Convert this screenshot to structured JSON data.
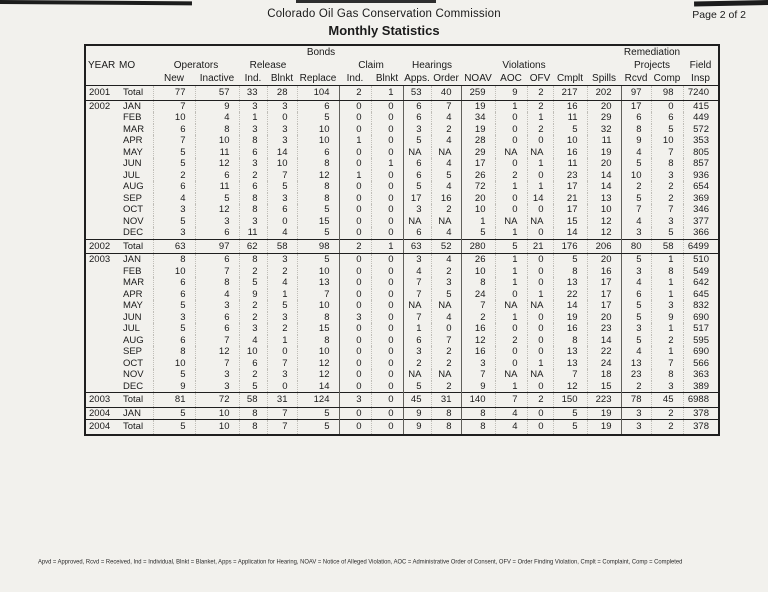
{
  "page": {
    "title_line1": "Colorado Oil Gas Conservation Commission",
    "title_line2": "Monthly Statistics",
    "page_number": "Page 2 of 2",
    "footnote": "Apvd = Approved, Rcvd = Received, Ind = Individual, Blnkt = Blanket, Apps = Application for Hearing, NOAV = Notice of Alleged Violation, AOC = Administrative Order of Consent, OFV = Order Finding Violation, Cmplt = Complaint, Comp = Completed"
  },
  "table": {
    "bonds_label": "Bonds",
    "remediation_label": "Remediation",
    "year_label": "YEAR",
    "mo_label": "MO",
    "groups": {
      "operators": "Operators",
      "release": "Release",
      "claim": "Claim",
      "hearings": "Hearings",
      "violations": "Violations",
      "projects": "Projects",
      "field": "Field"
    },
    "cols": [
      "New",
      "Inactive",
      "Ind.",
      "Blnkt",
      "Replace",
      "Ind.",
      "Blnkt",
      "Apps.",
      "Order",
      "NOAV",
      "AOC",
      "OFV",
      "Cmplt",
      "Spills",
      "Rcvd",
      "Comp",
      "Insp"
    ],
    "rows": [
      {
        "year": "2001",
        "mo": "Total",
        "values": [
          "77",
          "57",
          "33",
          "28",
          "104",
          "2",
          "1",
          "53",
          "40",
          "259",
          "9",
          "2",
          "217",
          "202",
          "97",
          "98",
          "7240"
        ]
      },
      {
        "year": "2002",
        "mo": "JAN",
        "values": [
          "7",
          "9",
          "3",
          "3",
          "6",
          "0",
          "0",
          "6",
          "7",
          "19",
          "1",
          "2",
          "16",
          "20",
          "17",
          "0",
          "415"
        ]
      },
      {
        "year": "",
        "mo": "FEB",
        "values": [
          "10",
          "4",
          "1",
          "0",
          "5",
          "0",
          "0",
          "6",
          "4",
          "34",
          "0",
          "1",
          "11",
          "29",
          "6",
          "6",
          "449"
        ]
      },
      {
        "year": "",
        "mo": "MAR",
        "values": [
          "6",
          "8",
          "3",
          "3",
          "10",
          "0",
          "0",
          "3",
          "2",
          "19",
          "0",
          "2",
          "5",
          "32",
          "8",
          "5",
          "572"
        ]
      },
      {
        "year": "",
        "mo": "APR",
        "values": [
          "7",
          "10",
          "8",
          "3",
          "10",
          "1",
          "0",
          "5",
          "4",
          "28",
          "0",
          "0",
          "10",
          "11",
          "9",
          "10",
          "353"
        ]
      },
      {
        "year": "",
        "mo": "MAY",
        "values": [
          "5",
          "11",
          "6",
          "14",
          "6",
          "0",
          "0",
          "NA",
          "NA",
          "29",
          "NA",
          "NA",
          "16",
          "19",
          "4",
          "7",
          "805"
        ]
      },
      {
        "year": "",
        "mo": "JUN",
        "values": [
          "5",
          "12",
          "3",
          "10",
          "8",
          "0",
          "1",
          "6",
          "4",
          "17",
          "0",
          "1",
          "11",
          "20",
          "5",
          "8",
          "857"
        ]
      },
      {
        "year": "",
        "mo": "JUL",
        "values": [
          "2",
          "6",
          "2",
          "7",
          "12",
          "1",
          "0",
          "6",
          "5",
          "26",
          "2",
          "0",
          "23",
          "14",
          "10",
          "3",
          "936"
        ]
      },
      {
        "year": "",
        "mo": "AUG",
        "values": [
          "6",
          "11",
          "6",
          "5",
          "8",
          "0",
          "0",
          "5",
          "4",
          "72",
          "1",
          "1",
          "17",
          "14",
          "2",
          "2",
          "654"
        ]
      },
      {
        "year": "",
        "mo": "SEP",
        "values": [
          "4",
          "5",
          "8",
          "3",
          "8",
          "0",
          "0",
          "17",
          "16",
          "20",
          "0",
          "14",
          "21",
          "13",
          "5",
          "2",
          "369"
        ]
      },
      {
        "year": "",
        "mo": "OCT",
        "values": [
          "3",
          "12",
          "8",
          "6",
          "5",
          "0",
          "0",
          "3",
          "2",
          "10",
          "0",
          "0",
          "17",
          "10",
          "7",
          "7",
          "346"
        ]
      },
      {
        "year": "",
        "mo": "NOV",
        "values": [
          "5",
          "3",
          "3",
          "0",
          "15",
          "0",
          "0",
          "NA",
          "NA",
          "1",
          "NA",
          "NA",
          "15",
          "12",
          "4",
          "3",
          "377"
        ]
      },
      {
        "year": "",
        "mo": "DEC",
        "values": [
          "3",
          "6",
          "11",
          "4",
          "5",
          "0",
          "0",
          "6",
          "4",
          "5",
          "1",
          "0",
          "14",
          "12",
          "3",
          "5",
          "366"
        ]
      },
      {
        "year": "2002",
        "mo": "Total",
        "values": [
          "63",
          "97",
          "62",
          "58",
          "98",
          "2",
          "1",
          "63",
          "52",
          "280",
          "5",
          "21",
          "176",
          "206",
          "80",
          "58",
          "6499"
        ]
      },
      {
        "year": "2003",
        "mo": "JAN",
        "values": [
          "8",
          "6",
          "8",
          "3",
          "5",
          "0",
          "0",
          "3",
          "4",
          "26",
          "1",
          "0",
          "5",
          "20",
          "5",
          "1",
          "510"
        ]
      },
      {
        "year": "",
        "mo": "FEB",
        "values": [
          "10",
          "7",
          "2",
          "2",
          "10",
          "0",
          "0",
          "4",
          "2",
          "10",
          "1",
          "0",
          "8",
          "16",
          "3",
          "8",
          "549"
        ]
      },
      {
        "year": "",
        "mo": "MAR",
        "values": [
          "6",
          "8",
          "5",
          "4",
          "13",
          "0",
          "0",
          "7",
          "3",
          "8",
          "1",
          "0",
          "13",
          "17",
          "4",
          "1",
          "642"
        ]
      },
      {
        "year": "",
        "mo": "APR",
        "values": [
          "6",
          "4",
          "9",
          "1",
          "7",
          "0",
          "0",
          "7",
          "5",
          "24",
          "0",
          "1",
          "22",
          "17",
          "6",
          "1",
          "645"
        ]
      },
      {
        "year": "",
        "mo": "MAY",
        "values": [
          "5",
          "3",
          "2",
          "5",
          "10",
          "0",
          "0",
          "NA",
          "NA",
          "7",
          "NA",
          "NA",
          "14",
          "17",
          "5",
          "3",
          "832"
        ]
      },
      {
        "year": "",
        "mo": "JUN",
        "values": [
          "3",
          "6",
          "2",
          "3",
          "8",
          "3",
          "0",
          "7",
          "4",
          "2",
          "1",
          "0",
          "19",
          "20",
          "5",
          "9",
          "690"
        ]
      },
      {
        "year": "",
        "mo": "JUL",
        "values": [
          "5",
          "6",
          "3",
          "2",
          "15",
          "0",
          "0",
          "1",
          "0",
          "16",
          "0",
          "0",
          "16",
          "23",
          "3",
          "1",
          "517"
        ]
      },
      {
        "year": "",
        "mo": "AUG",
        "values": [
          "6",
          "7",
          "4",
          "1",
          "8",
          "0",
          "0",
          "6",
          "7",
          "12",
          "2",
          "0",
          "8",
          "14",
          "5",
          "2",
          "595"
        ]
      },
      {
        "year": "",
        "mo": "SEP",
        "values": [
          "8",
          "12",
          "10",
          "0",
          "10",
          "0",
          "0",
          "3",
          "2",
          "16",
          "0",
          "0",
          "13",
          "22",
          "4",
          "1",
          "690"
        ]
      },
      {
        "year": "",
        "mo": "OCT",
        "values": [
          "10",
          "7",
          "6",
          "7",
          "12",
          "0",
          "0",
          "2",
          "2",
          "3",
          "0",
          "1",
          "13",
          "24",
          "13",
          "7",
          "566"
        ]
      },
      {
        "year": "",
        "mo": "NOV",
        "values": [
          "5",
          "3",
          "2",
          "3",
          "12",
          "0",
          "0",
          "NA",
          "NA",
          "7",
          "NA",
          "NA",
          "7",
          "18",
          "23",
          "8",
          "363"
        ]
      },
      {
        "year": "",
        "mo": "DEC",
        "values": [
          "9",
          "3",
          "5",
          "0",
          "14",
          "0",
          "0",
          "5",
          "2",
          "9",
          "1",
          "0",
          "12",
          "15",
          "2",
          "3",
          "389"
        ]
      },
      {
        "year": "2003",
        "mo": "Total",
        "values": [
          "81",
          "72",
          "58",
          "31",
          "124",
          "3",
          "0",
          "45",
          "31",
          "140",
          "7",
          "2",
          "150",
          "223",
          "78",
          "45",
          "6988"
        ]
      },
      {
        "year": "2004",
        "mo": "JAN",
        "values": [
          "5",
          "10",
          "8",
          "7",
          "5",
          "0",
          "0",
          "9",
          "8",
          "8",
          "4",
          "0",
          "5",
          "19",
          "3",
          "2",
          "378"
        ]
      },
      {
        "year": "2004",
        "mo": "Total",
        "values": [
          "5",
          "10",
          "8",
          "7",
          "5",
          "0",
          "0",
          "9",
          "8",
          "8",
          "4",
          "0",
          "5",
          "19",
          "3",
          "2",
          "378"
        ]
      }
    ]
  }
}
